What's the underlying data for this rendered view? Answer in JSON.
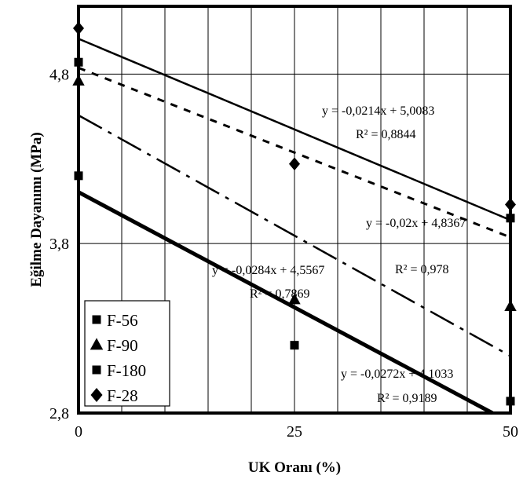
{
  "chart_data": {
    "type": "scatter",
    "title": "",
    "xlabel": "UK Oranı (%)",
    "ylabel": "Eğilme Dayanımı (MPa)",
    "xlim": [
      0,
      50
    ],
    "ylim": [
      2.8,
      5.2
    ],
    "x_ticks": [
      0,
      25,
      50
    ],
    "y_ticks": [
      2.8,
      3.8,
      4.8
    ],
    "x_tick_labels": [
      "0",
      "25",
      "50"
    ],
    "y_tick_labels": [
      "2,8",
      "3,8",
      "4,8"
    ],
    "grid": true,
    "legend_position": "bottom-left",
    "series": [
      {
        "name": "F-56",
        "marker": "square",
        "x": [
          0,
          25,
          50
        ],
        "y": [
          4.2,
          3.2,
          2.87
        ],
        "trend": {
          "slope": -0.0272,
          "intercept": 4.1033,
          "style": "solid-thick"
        },
        "equation": "y = -0,0272x + 4,1033",
        "r2": "R² = 0,9189"
      },
      {
        "name": "F-90",
        "marker": "triangle",
        "x": [
          0,
          25,
          50
        ],
        "y": [
          4.76,
          3.47,
          3.43
        ],
        "trend": {
          "slope": -0.0284,
          "intercept": 4.5567,
          "style": "dash-dot"
        },
        "equation": "y = -0,0284x + 4,5567",
        "r2": "R² = 0,7869"
      },
      {
        "name": "F-180",
        "marker": "square",
        "x": [
          0,
          50
        ],
        "y": [
          4.87,
          3.95
        ],
        "trend": {
          "slope": -0.02,
          "intercept": 4.8367,
          "style": "dotted"
        },
        "equation": "y = -0,02x + 4,8367",
        "r2": "R² = 0,978"
      },
      {
        "name": "F-28",
        "marker": "diamond",
        "x": [
          0,
          25,
          50
        ],
        "y": [
          5.07,
          4.27,
          4.03
        ],
        "trend": {
          "slope": -0.0214,
          "intercept": 5.0083,
          "style": "solid"
        },
        "equation": "y = -0,0214x + 5,0083",
        "r2": "R² = 0,8844"
      }
    ]
  }
}
